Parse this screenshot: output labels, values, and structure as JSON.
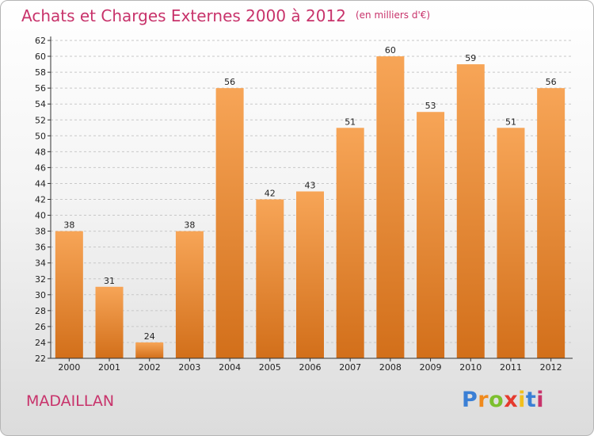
{
  "header": {
    "title": "Achats et Charges Externes 2000 à 2012",
    "unit": "(en milliers d'€)"
  },
  "footer": {
    "place": "MADAILLAN",
    "logo": {
      "p": "P",
      "r": "r",
      "o": "o",
      "x": "x",
      "i1": "i",
      "t": "t",
      "i2": "i"
    }
  },
  "colors": {
    "bar_top": "#f7a557",
    "bar_bottom": "#d26f1a",
    "title": "#c8336b",
    "axis": "#333333",
    "grid": "#c8c8c8"
  },
  "chart_data": {
    "type": "bar",
    "title": "Achats et Charges Externes 2000 à 2012",
    "subtitle": "(en milliers d'€)",
    "categories": [
      "2000",
      "2001",
      "2002",
      "2003",
      "2004",
      "2005",
      "2006",
      "2007",
      "2008",
      "2009",
      "2010",
      "2011",
      "2012"
    ],
    "values": [
      38,
      31,
      24,
      38,
      56,
      42,
      43,
      51,
      60,
      53,
      59,
      51,
      56
    ],
    "ylim": [
      22,
      62
    ],
    "ytick_step": 2,
    "xlabel": "",
    "ylabel": "",
    "grid": true,
    "legend": "none"
  }
}
